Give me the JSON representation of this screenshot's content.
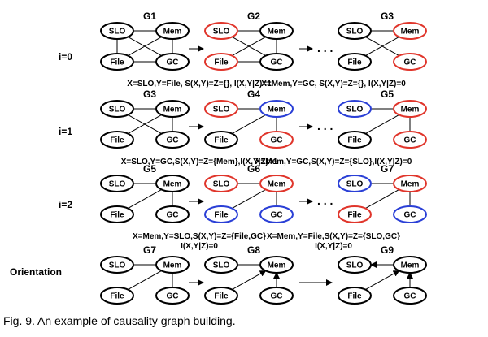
{
  "colors": {
    "default": "#000000",
    "red": "#e0352b",
    "blue": "#2a3fd6"
  },
  "figure": {
    "caption": "Fig. 9. An example of causality graph building.",
    "continuation": ". . .",
    "rows": [
      {
        "label": "i=0",
        "graphs": [
          {
            "title": "G1",
            "colors": {
              "SLO": "default",
              "Mem": "default",
              "File": "default",
              "GC": "default"
            },
            "edges": [
              [
                "SLO",
                "Mem"
              ],
              [
                "SLO",
                "File"
              ],
              [
                "SLO",
                "GC"
              ],
              [
                "Mem",
                "File"
              ],
              [
                "Mem",
                "GC"
              ],
              [
                "File",
                "GC"
              ]
            ]
          },
          {
            "title": "G2",
            "colors": {
              "SLO": "red",
              "Mem": "default",
              "File": "red",
              "GC": "default"
            },
            "edges": [
              [
                "SLO",
                "Mem"
              ],
              [
                "SLO",
                "GC"
              ],
              [
                "Mem",
                "File"
              ],
              [
                "Mem",
                "GC"
              ],
              [
                "File",
                "GC"
              ]
            ]
          },
          {
            "title": "G3",
            "colors": {
              "SLO": "default",
              "Mem": "red",
              "File": "default",
              "GC": "red"
            },
            "edges": [
              [
                "SLO",
                "Mem"
              ],
              [
                "SLO",
                "GC"
              ],
              [
                "Mem",
                "File"
              ]
            ]
          }
        ],
        "annotations": [
          [
            "X=SLO,Y=File, S(X,Y)=Z={}, I(X,Y|Z)=1"
          ],
          [
            "X=Mem,Y=GC, S(X,Y)=Z={}, I(X,Y|Z)=0"
          ]
        ]
      },
      {
        "label": "i=1",
        "graphs": [
          {
            "title": "G3",
            "colors": {
              "SLO": "default",
              "Mem": "default",
              "File": "default",
              "GC": "default"
            },
            "edges": [
              [
                "SLO",
                "Mem"
              ],
              [
                "SLO",
                "GC"
              ],
              [
                "Mem",
                "File"
              ],
              [
                "Mem",
                "GC"
              ]
            ]
          },
          {
            "title": "G4",
            "colors": {
              "SLO": "red",
              "Mem": "blue",
              "File": "default",
              "GC": "red"
            },
            "edges": [
              [
                "SLO",
                "Mem"
              ],
              [
                "Mem",
                "File"
              ],
              [
                "Mem",
                "GC"
              ]
            ]
          },
          {
            "title": "G5",
            "colors": {
              "SLO": "blue",
              "Mem": "red",
              "File": "default",
              "GC": "red"
            },
            "edges": [
              [
                "SLO",
                "Mem"
              ],
              [
                "Mem",
                "File"
              ],
              [
                "Mem",
                "GC"
              ]
            ]
          }
        ],
        "annotations": [
          [
            "X=SLO,Y=GC,S(X,Y)=Z={Mem},I(X,Y|Z)=1"
          ],
          [
            "X=Mem,Y=GC,S(X,Y)=Z={SLO},I(X,Y|Z)=0"
          ]
        ]
      },
      {
        "label": "i=2",
        "graphs": [
          {
            "title": "G5",
            "colors": {
              "SLO": "default",
              "Mem": "default",
              "File": "default",
              "GC": "default"
            },
            "edges": [
              [
                "SLO",
                "Mem"
              ],
              [
                "Mem",
                "File"
              ],
              [
                "Mem",
                "GC"
              ]
            ]
          },
          {
            "title": "G6",
            "colors": {
              "SLO": "red",
              "Mem": "red",
              "File": "blue",
              "GC": "blue"
            },
            "edges": [
              [
                "SLO",
                "Mem"
              ],
              [
                "Mem",
                "File"
              ],
              [
                "Mem",
                "GC"
              ]
            ]
          },
          {
            "title": "G7",
            "colors": {
              "SLO": "blue",
              "Mem": "red",
              "File": "red",
              "GC": "blue"
            },
            "edges": [
              [
                "SLO",
                "Mem"
              ],
              [
                "Mem",
                "File"
              ],
              [
                "Mem",
                "GC"
              ]
            ]
          }
        ],
        "annotations": [
          [
            "X=Mem,Y=SLO,S(X,Y)=Z={File,GC}",
            "I(X,Y|Z)=0"
          ],
          [
            "X=Mem,Y=File,S(X,Y)=Z={SLO,GC}",
            "I(X,Y|Z)=0"
          ]
        ]
      },
      {
        "label": "Orientation",
        "graphs": [
          {
            "title": "G7",
            "colors": {
              "SLO": "default",
              "Mem": "default",
              "File": "default",
              "GC": "default"
            },
            "edges": [
              [
                "SLO",
                "Mem"
              ],
              [
                "Mem",
                "File"
              ],
              [
                "Mem",
                "GC"
              ]
            ]
          },
          {
            "title": "G8",
            "colors": {
              "SLO": "default",
              "Mem": "default",
              "File": "default",
              "GC": "default"
            },
            "edges": [
              [
                "SLO",
                "Mem"
              ],
              [
                "File",
                "Mem",
                "arrow"
              ],
              [
                "GC",
                "Mem",
                "arrow"
              ]
            ]
          },
          {
            "title": "G9",
            "colors": {
              "SLO": "default",
              "Mem": "default",
              "File": "default",
              "GC": "default"
            },
            "edges": [
              [
                "Mem",
                "SLO",
                "arrow"
              ],
              [
                "File",
                "Mem",
                "arrow"
              ],
              [
                "GC",
                "Mem",
                "arrow"
              ]
            ]
          }
        ],
        "annotations": []
      }
    ]
  }
}
